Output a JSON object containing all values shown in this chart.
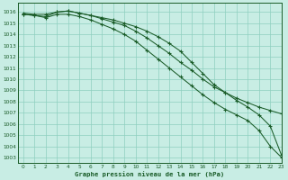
{
  "xlabel": "Graphe pression niveau de la mer (hPa)",
  "xlim": [
    -0.5,
    23
  ],
  "ylim": [
    1002.5,
    1016.8
  ],
  "yticks": [
    1003,
    1004,
    1005,
    1006,
    1007,
    1008,
    1009,
    1010,
    1011,
    1012,
    1013,
    1014,
    1015,
    1016
  ],
  "xticks": [
    0,
    1,
    2,
    3,
    4,
    5,
    6,
    7,
    8,
    9,
    10,
    11,
    12,
    13,
    14,
    15,
    16,
    17,
    18,
    19,
    20,
    21,
    22,
    23
  ],
  "bg_color": "#c8ede4",
  "grid_color": "#8ecfbf",
  "line_color": "#1a5c28",
  "curve1_y": [
    1015.8,
    1015.7,
    1015.6,
    1016.0,
    1016.1,
    1015.9,
    1015.7,
    1015.5,
    1015.3,
    1015.0,
    1014.7,
    1014.3,
    1013.8,
    1013.2,
    1012.5,
    1011.5,
    1010.5,
    1009.5,
    1008.8,
    1008.1,
    1007.5,
    1006.8,
    1005.8,
    1003.2
  ],
  "curve2_y": [
    1015.9,
    1015.8,
    1015.8,
    1016.0,
    1016.1,
    1015.9,
    1015.7,
    1015.4,
    1015.1,
    1014.8,
    1014.3,
    1013.7,
    1013.0,
    1012.3,
    1011.5,
    1010.8,
    1010.0,
    1009.3,
    1008.8,
    1008.3,
    1007.9,
    1007.5,
    1007.2,
    1006.9
  ],
  "curve3_y": [
    1015.8,
    1015.7,
    1015.5,
    1015.8,
    1015.8,
    1015.6,
    1015.3,
    1014.9,
    1014.5,
    1014.0,
    1013.4,
    1012.6,
    1011.8,
    1011.0,
    1010.2,
    1009.4,
    1008.6,
    1007.9,
    1007.3,
    1006.8,
    1006.3,
    1005.4,
    1004.0,
    1003.0
  ]
}
